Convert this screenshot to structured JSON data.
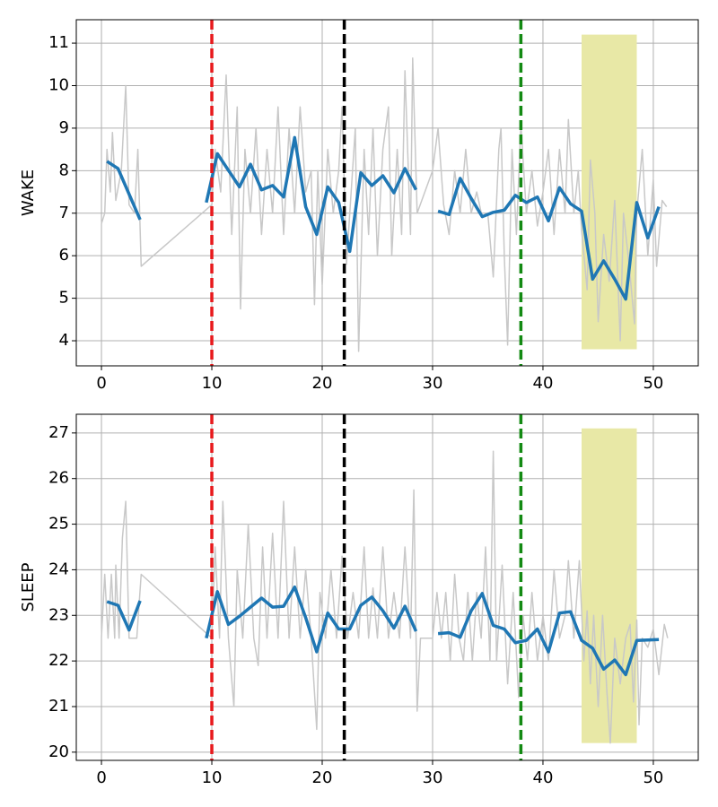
{
  "chart_data": [
    {
      "type": "line",
      "ylabel": "WAKE",
      "xlim": [
        -2.28,
        54.07
      ],
      "ylim": [
        3.41,
        11.55
      ],
      "xticks": [
        0,
        10,
        20,
        30,
        40,
        50
      ],
      "yticks": [
        4,
        5,
        6,
        7,
        8,
        9,
        10,
        11
      ],
      "grid": true,
      "spans": [
        {
          "x": [
            43.5,
            48.5
          ],
          "y": [
            3.8,
            11.2
          ],
          "color": "#e8e8a6"
        }
      ],
      "vlines": [
        {
          "x": 10,
          "color": "#e8191c"
        },
        {
          "x": 22,
          "color": "#000000"
        },
        {
          "x": 38,
          "color": "#138a13"
        }
      ],
      "series": [
        {
          "color": "#c8c8c8",
          "width": 1.5,
          "x": [
            0,
            0.3,
            0.5,
            0.8,
            1,
            1.3,
            1.8,
            2.2,
            2.5,
            3,
            3.3,
            3.6,
            10,
            10.3,
            10.8,
            11.3,
            11.8,
            12.3,
            12.6,
            13,
            13.5,
            14,
            14.5,
            15,
            15.5,
            16,
            16.5,
            17,
            17.5,
            18,
            18.5,
            19,
            19.3,
            19.6,
            20,
            20.5,
            21,
            21.5,
            21.8,
            22.2,
            22.5,
            23,
            23.3,
            23.8,
            24.2,
            24.6,
            25,
            25.5,
            26,
            26.3,
            26.8,
            27.2,
            27.5,
            28,
            28.2,
            28.6,
            30,
            30.5,
            31,
            31.5,
            32,
            32.5,
            33,
            33.5,
            34,
            34.5,
            35,
            35.5,
            36,
            36.2,
            36.5,
            36.8,
            37.2,
            37.6,
            38,
            38.5,
            39,
            39.5,
            40,
            40.5,
            41,
            41.5,
            42,
            42.3,
            42.8,
            43.2,
            43.5,
            44,
            44.3,
            44.7,
            45,
            45.5,
            46,
            46.5,
            47,
            47.3,
            47.8,
            48.3,
            48.5,
            49,
            49.5,
            50,
            50.3,
            50.8,
            51.2
          ],
          "values": [
            6.75,
            7.0,
            8.5,
            7.5,
            8.9,
            7.3,
            8.0,
            10.0,
            7.2,
            7.0,
            8.5,
            5.75,
            7.2,
            8.5,
            7.5,
            10.25,
            6.5,
            9.5,
            4.75,
            8.5,
            7.0,
            9.0,
            6.5,
            8.5,
            7.0,
            9.5,
            6.5,
            9.0,
            7.0,
            9.5,
            7.5,
            8.0,
            4.85,
            8.0,
            5.3,
            8.5,
            7.0,
            8.0,
            9.5,
            5.8,
            7.0,
            9.0,
            3.75,
            8.5,
            6.5,
            9.0,
            6.0,
            8.5,
            9.5,
            6.0,
            8.5,
            6.5,
            10.35,
            6.5,
            10.65,
            7.0,
            8.0,
            9.0,
            7.2,
            6.5,
            8.0,
            7.0,
            8.5,
            7.0,
            7.5,
            6.9,
            7.0,
            5.5,
            8.5,
            9.0,
            6.0,
            3.9,
            8.5,
            6.5,
            9.1,
            7.0,
            8.0,
            6.7,
            7.5,
            8.5,
            6.5,
            8.5,
            7.0,
            9.2,
            7.0,
            8.0,
            6.6,
            5.2,
            8.25,
            7.0,
            4.45,
            6.5,
            5.4,
            7.3,
            4.0,
            7.0,
            5.8,
            4.4,
            7.0,
            8.5,
            6.0,
            7.8,
            5.75,
            7.3,
            7.15
          ]
        },
        {
          "color": "#1f77b4",
          "width": 3.5,
          "x": [
            0.5,
            1.5,
            3.5,
            null,
            9.5,
            10.5,
            12.5,
            13.5,
            14.5,
            15.5,
            16.5,
            17.5,
            18.5,
            19.5,
            20.5,
            21.5,
            22.5,
            23.5,
            24.5,
            25.5,
            26.5,
            27.5,
            28.5,
            null,
            30.5,
            31.5,
            32.5,
            33.5,
            34.5,
            35.5,
            36.5,
            37.5,
            38.5,
            39.5,
            40.5,
            41.5,
            42.5,
            43.5,
            44.5,
            45.5,
            46.5,
            47.5,
            48.5,
            49.5,
            50.5
          ],
          "values": [
            8.22,
            8.05,
            6.85,
            null,
            7.25,
            8.4,
            7.62,
            8.15,
            7.55,
            7.65,
            7.38,
            8.78,
            7.15,
            6.5,
            7.62,
            7.25,
            6.1,
            7.95,
            7.65,
            7.88,
            7.48,
            8.05,
            7.55,
            null,
            7.05,
            6.97,
            7.82,
            7.35,
            6.92,
            7.02,
            7.07,
            7.42,
            7.25,
            7.38,
            6.82,
            7.6,
            7.22,
            7.05,
            5.45,
            5.88,
            5.45,
            4.98,
            7.25,
            6.42,
            7.15
          ]
        }
      ]
    },
    {
      "type": "line",
      "ylabel": "SLEEP",
      "xlim": [
        -2.28,
        54.07
      ],
      "ylim": [
        19.82,
        27.41
      ],
      "xticks": [
        0,
        10,
        20,
        30,
        40,
        50
      ],
      "yticks": [
        20,
        21,
        22,
        23,
        24,
        25,
        26,
        27
      ],
      "grid": true,
      "spans": [
        {
          "x": [
            43.5,
            48.5
          ],
          "y": [
            20.2,
            27.1
          ],
          "color": "#e8e8a6"
        }
      ],
      "vlines": [
        {
          "x": 10,
          "color": "#e8191c"
        },
        {
          "x": 22,
          "color": "#000000"
        },
        {
          "x": 38,
          "color": "#138a13"
        }
      ],
      "series": [
        {
          "color": "#c8c8c8",
          "width": 1.5,
          "x": [
            0,
            0.3,
            0.6,
            0.9,
            1.2,
            1.3,
            1.6,
            1.9,
            2.2,
            2.5,
            2.9,
            3.2,
            3.6,
            10,
            10.3,
            10.7,
            11,
            11.5,
            12,
            12.3,
            12.8,
            13.3,
            13.8,
            14.2,
            14.6,
            15,
            15.5,
            16,
            16.5,
            17,
            17.5,
            18,
            18.5,
            19,
            19.5,
            19.8,
            20.3,
            20.8,
            21.3,
            21.8,
            22.3,
            22.8,
            23.3,
            23.8,
            24.2,
            24.6,
            25,
            25.5,
            26,
            26.5,
            27,
            27.5,
            28,
            28.3,
            28.6,
            28.9,
            30,
            30.4,
            30.8,
            31.2,
            31.6,
            32,
            32.4,
            32.8,
            33.2,
            33.6,
            34,
            34.4,
            34.8,
            35.2,
            35.5,
            35.8,
            36.3,
            36.8,
            37.3,
            37.8,
            38.2,
            38.6,
            39,
            39.5,
            40,
            40.5,
            41,
            41.5,
            42,
            42.3,
            42.8,
            43.3,
            43.7,
            44,
            44.3,
            44.6,
            45,
            45.4,
            45.8,
            46.1,
            46.5,
            47,
            47.5,
            47.9,
            48.2,
            48.5,
            48.7,
            49,
            49.5,
            50,
            50.5,
            51,
            51.3
          ],
          "values": [
            22.5,
            23.9,
            22.5,
            23.9,
            22.5,
            24.1,
            22.5,
            24.7,
            25.5,
            22.5,
            22.5,
            22.5,
            23.9,
            22.5,
            24.5,
            22.5,
            25.5,
            22.5,
            21.0,
            24.0,
            22.5,
            25.0,
            22.5,
            21.9,
            24.5,
            22.5,
            24.8,
            22.5,
            25.5,
            22.5,
            24.5,
            22.5,
            24.0,
            22.5,
            20.5,
            23.5,
            22.5,
            24.0,
            22.5,
            24.3,
            22.5,
            23.5,
            22.5,
            24.5,
            22.5,
            23.6,
            22.5,
            24.5,
            22.5,
            23.5,
            22.5,
            24.5,
            22.5,
            25.75,
            20.9,
            22.5,
            22.5,
            23.5,
            22.5,
            23.5,
            22.0,
            23.9,
            22.5,
            22.0,
            23.5,
            22.0,
            23.5,
            22.5,
            24.5,
            22.0,
            26.6,
            22.0,
            24.1,
            21.5,
            23.5,
            21.2,
            23.0,
            22.0,
            23.5,
            22.0,
            23.0,
            22.0,
            24.0,
            22.5,
            23.0,
            24.2,
            22.5,
            24.2,
            22.0,
            23.1,
            21.5,
            23.0,
            21.0,
            23.0,
            21.3,
            20.2,
            22.5,
            21.5,
            22.5,
            22.8,
            21.1,
            22.9,
            20.6,
            22.5,
            22.3,
            22.7,
            21.7,
            22.8,
            22.5
          ]
        },
        {
          "color": "#1f77b4",
          "width": 3.5,
          "x": [
            0.5,
            1.5,
            2.5,
            3.5,
            null,
            9.5,
            10.5,
            11.5,
            12.5,
            13.5,
            14.5,
            15.5,
            16.5,
            17.5,
            18.5,
            19.5,
            20.5,
            21.5,
            22.5,
            23.5,
            24.5,
            25.5,
            26.5,
            27.5,
            28.5,
            null,
            30.5,
            31.5,
            32.5,
            33.5,
            34.5,
            35.5,
            36.5,
            37.5,
            38.5,
            39.5,
            40.5,
            41.5,
            42.5,
            43.5,
            44.5,
            45.5,
            46.5,
            47.5,
            48.5,
            50.5
          ],
          "values": [
            23.3,
            23.22,
            22.68,
            23.32,
            null,
            22.5,
            23.52,
            22.8,
            22.98,
            23.18,
            23.38,
            23.18,
            23.2,
            23.62,
            22.95,
            22.2,
            23.05,
            22.7,
            22.7,
            23.22,
            23.4,
            23.1,
            22.72,
            23.2,
            22.65,
            null,
            22.6,
            22.62,
            22.52,
            23.1,
            23.48,
            22.78,
            22.7,
            22.4,
            22.45,
            22.7,
            22.2,
            23.05,
            23.08,
            22.45,
            22.28,
            21.82,
            22.02,
            21.7,
            22.45,
            22.47
          ]
        }
      ]
    }
  ]
}
